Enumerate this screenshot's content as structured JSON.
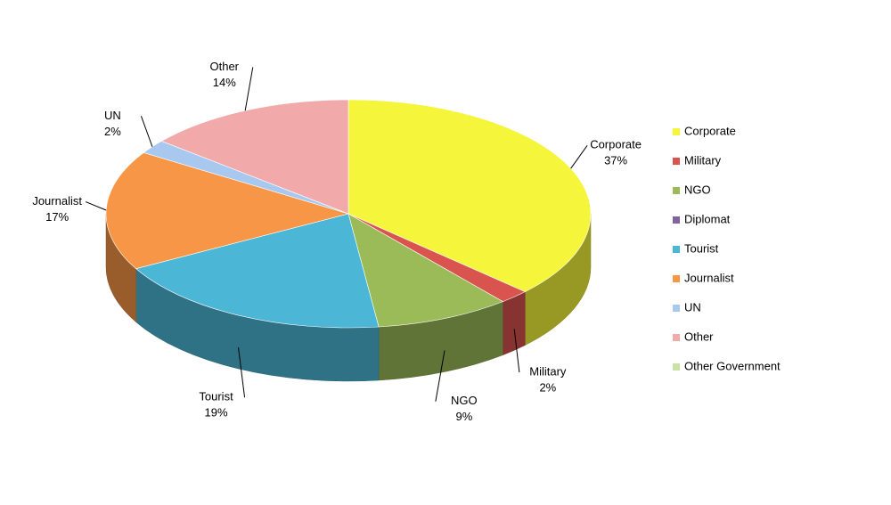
{
  "chart_data": {
    "type": "pie",
    "categories": [
      "Corporate",
      "Military",
      "NGO",
      "Diplomat",
      "Tourist",
      "Journalist",
      "UN",
      "Other",
      "Other Government"
    ],
    "values": [
      37,
      2,
      9,
      0,
      19,
      17,
      2,
      14,
      0
    ],
    "value_labels": [
      "37%",
      "2%",
      "9%",
      null,
      "19%",
      "17%",
      "2%",
      "14%",
      null
    ],
    "colors": [
      "#f5f53c",
      "#d9534f",
      "#9bbb59",
      "#8064a2",
      "#4bb6d6",
      "#f79646",
      "#a9c8f0",
      "#f2a9a9",
      "#c9e3a6"
    ],
    "legend": "right"
  }
}
